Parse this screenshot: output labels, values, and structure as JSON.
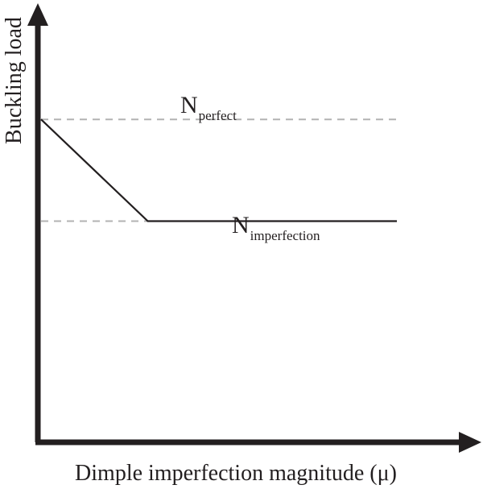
{
  "chart_data": {
    "type": "line",
    "title": "",
    "xlabel": "Dimple imperfection magnitude (μ)",
    "ylabel": "Buckling load",
    "series": [
      {
        "points": [
          [
            0,
            0.73
          ],
          [
            0.3,
            0.5
          ],
          [
            1.0,
            0.5
          ]
        ]
      }
    ],
    "reference_lines": [
      {
        "y": 0.73,
        "style": "dashed",
        "label_main": "N",
        "label_sub": "perfect"
      },
      {
        "y": 0.5,
        "style": "dashed",
        "label_main": "N",
        "label_sub": "imperfection"
      }
    ],
    "xlim": [
      0,
      1.0
    ],
    "ylim": [
      0,
      1.0
    ],
    "grid": false,
    "ticks": false,
    "colors": {
      "axis": "#231f20",
      "line": "#231f20",
      "reference": "#b3b3b3"
    }
  }
}
